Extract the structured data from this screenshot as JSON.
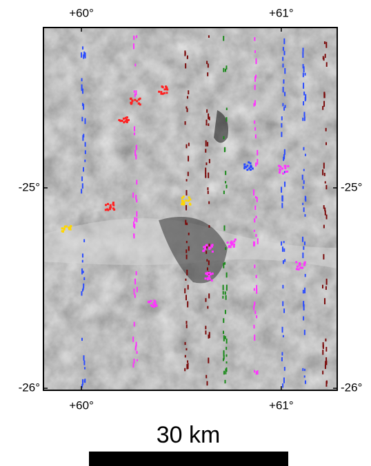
{
  "map": {
    "xlim": [
      59.81,
      61.28
    ],
    "ylim": [
      -26.01,
      -24.2
    ],
    "xticks": [
      {
        "value": 60,
        "label": "+60°"
      },
      {
        "value": 61,
        "label": "+61°"
      }
    ],
    "yticks": [
      {
        "value": -25,
        "label": "-25°"
      },
      {
        "value": -26,
        "label": "-26°"
      }
    ],
    "scale_bar": "30 km"
  }
}
